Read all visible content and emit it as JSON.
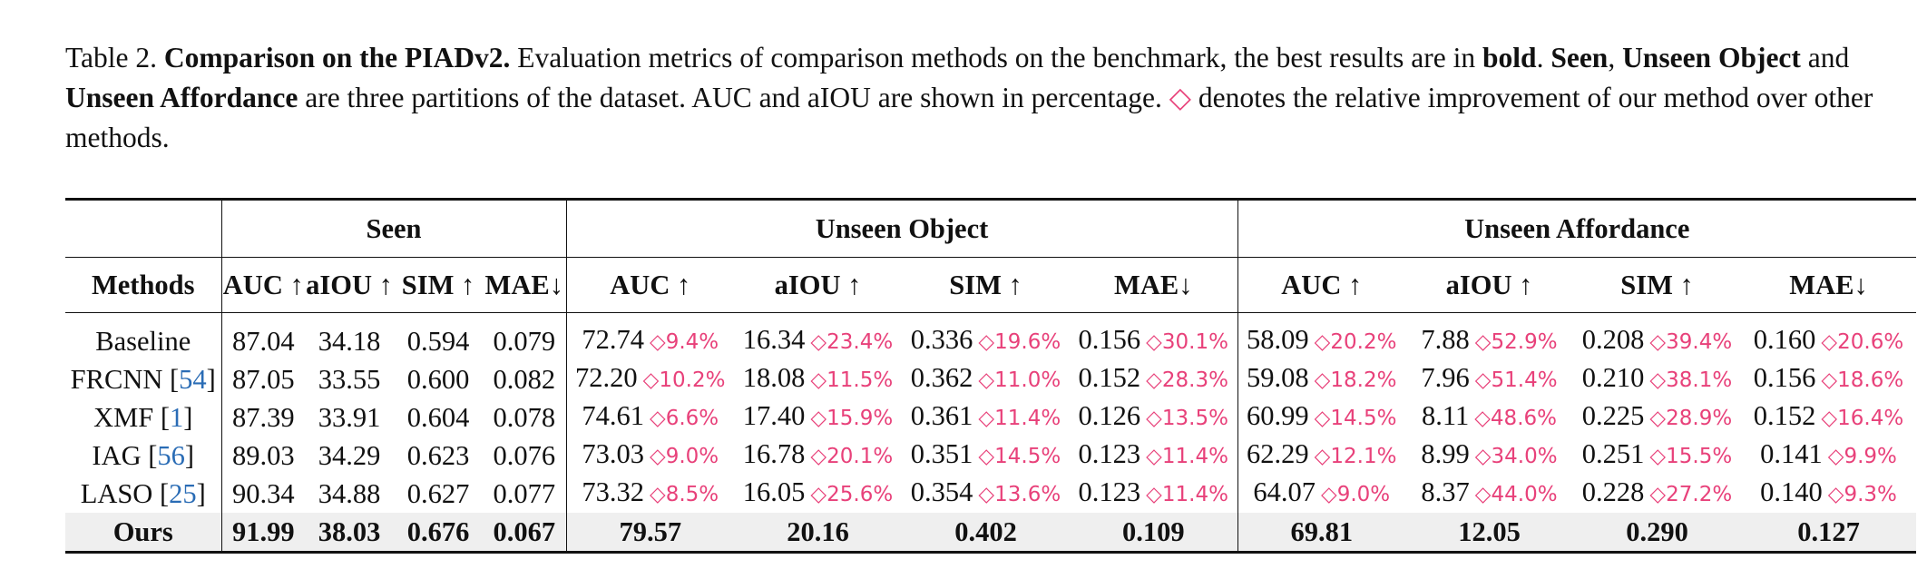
{
  "caption": {
    "prefix": "Table 2.",
    "title": "Comparison on the PIADv2.",
    "text1": " Evaluation metrics of comparison methods on the benchmark, the best results are in ",
    "bold_word": "bold",
    "text2": ". ",
    "seen": "Seen",
    "comma": ",",
    "unseen_object": "Unseen Object",
    "and": " and ",
    "unseen_affordance": "Unseen Affordance",
    "text3": " are three partitions of the dataset. AUC and aIOU are shown in percentage. ",
    "diamond": "◇",
    "text4": " denotes the relative improvement of our method over other methods."
  },
  "table": {
    "groups": [
      "Seen",
      "Unseen Object",
      "Unseen Affordance"
    ],
    "metrics": {
      "methods": "Methods",
      "auc": "AUC ↑",
      "aiou": "aIOU ↑",
      "sim": "SIM ↑",
      "mae": "MAE↓"
    },
    "rows": [
      {
        "name": "Baseline",
        "cite": "",
        "seen": [
          "87.04",
          "34.18",
          "0.594",
          "0.079"
        ],
        "uo": [
          [
            "72.74",
            "◇9.4%"
          ],
          [
            "16.34",
            "◇23.4%"
          ],
          [
            "0.336",
            "◇19.6%"
          ],
          [
            "0.156",
            "◇30.1%"
          ]
        ],
        "ua": [
          [
            "58.09",
            "◇20.2%"
          ],
          [
            "7.88",
            "◇52.9%"
          ],
          [
            "0.208",
            "◇39.4%"
          ],
          [
            "0.160",
            "◇20.6%"
          ]
        ]
      },
      {
        "name": "FRCNN [",
        "cite": "54",
        "seen": [
          "87.05",
          "33.55",
          "0.600",
          "0.082"
        ],
        "uo": [
          [
            "72.20",
            "◇10.2%"
          ],
          [
            "18.08",
            "◇11.5%"
          ],
          [
            "0.362",
            "◇11.0%"
          ],
          [
            "0.152",
            "◇28.3%"
          ]
        ],
        "ua": [
          [
            "59.08",
            "◇18.2%"
          ],
          [
            "7.96",
            "◇51.4%"
          ],
          [
            "0.210",
            "◇38.1%"
          ],
          [
            "0.156",
            "◇18.6%"
          ]
        ]
      },
      {
        "name": "XMF [",
        "cite": "1",
        "seen": [
          "87.39",
          "33.91",
          "0.604",
          "0.078"
        ],
        "uo": [
          [
            "74.61",
            "◇6.6%"
          ],
          [
            "17.40",
            "◇15.9%"
          ],
          [
            "0.361",
            "◇11.4%"
          ],
          [
            "0.126",
            "◇13.5%"
          ]
        ],
        "ua": [
          [
            "60.99",
            "◇14.5%"
          ],
          [
            "8.11",
            "◇48.6%"
          ],
          [
            "0.225",
            "◇28.9%"
          ],
          [
            "0.152",
            "◇16.4%"
          ]
        ]
      },
      {
        "name": "IAG [",
        "cite": "56",
        "seen": [
          "89.03",
          "34.29",
          "0.623",
          "0.076"
        ],
        "uo": [
          [
            "73.03",
            "◇9.0%"
          ],
          [
            "16.78",
            "◇20.1%"
          ],
          [
            "0.351",
            "◇14.5%"
          ],
          [
            "0.123",
            "◇11.4%"
          ]
        ],
        "ua": [
          [
            "62.29",
            "◇12.1%"
          ],
          [
            "8.99",
            "◇34.0%"
          ],
          [
            "0.251",
            "◇15.5%"
          ],
          [
            "0.141",
            "◇9.9%"
          ]
        ]
      },
      {
        "name": "LASO [",
        "cite": "25",
        "seen": [
          "90.34",
          "34.88",
          "0.627",
          "0.077"
        ],
        "uo": [
          [
            "73.32",
            "◇8.5%"
          ],
          [
            "16.05",
            "◇25.6%"
          ],
          [
            "0.354",
            "◇13.6%"
          ],
          [
            "0.123",
            "◇11.4%"
          ]
        ],
        "ua": [
          [
            "64.07",
            "◇9.0%"
          ],
          [
            "8.37",
            "◇44.0%"
          ],
          [
            "0.228",
            "◇27.2%"
          ],
          [
            "0.140",
            "◇9.3%"
          ]
        ]
      }
    ],
    "ours": {
      "name": "Ours",
      "seen": [
        "91.99",
        "38.03",
        "0.676",
        "0.067"
      ],
      "uo": [
        "79.57",
        "20.16",
        "0.402",
        "0.109"
      ],
      "ua": [
        "69.81",
        "12.05",
        "0.290",
        "0.127"
      ]
    }
  },
  "colors": {
    "improvement": "#e8417a",
    "citation": "#2a6cb5",
    "ours_row_bg": "#efefef"
  }
}
